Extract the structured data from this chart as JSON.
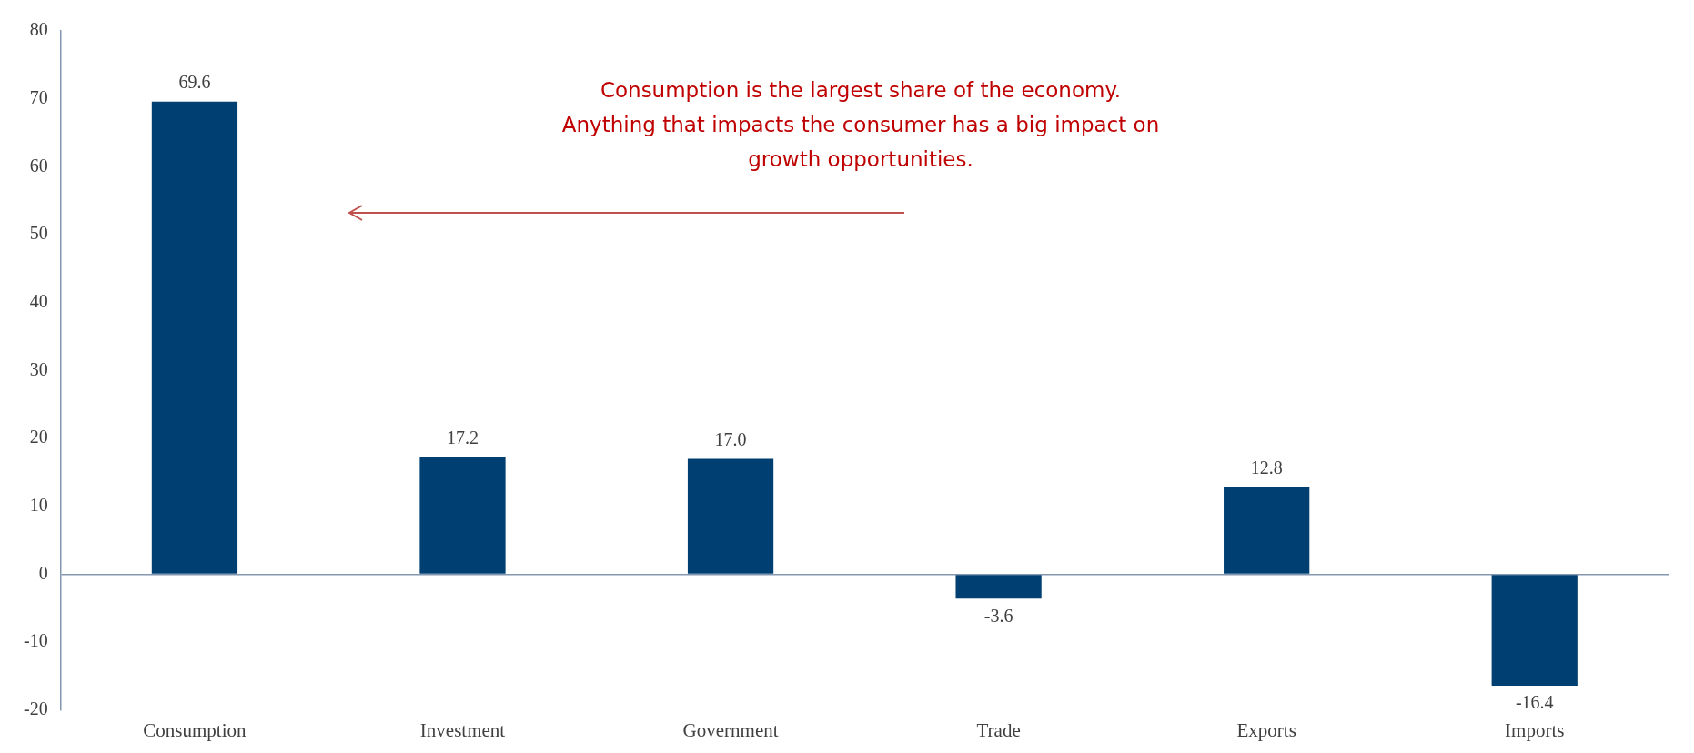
{
  "chart_data": {
    "type": "bar",
    "categories": [
      "Consumption",
      "Investment",
      "Government",
      "Trade",
      "Exports",
      "Imports"
    ],
    "values": [
      69.6,
      17.2,
      17.0,
      -3.6,
      12.8,
      -16.4
    ],
    "color": "#003f72",
    "value_labels": [
      "69.6",
      "17.2",
      "17.0",
      "-3.6",
      "12.8",
      "-16.4"
    ],
    "ref_lines": [
      {
        "axis": "y",
        "value": 0,
        "color": "#8497b0"
      }
    ],
    "ylim": [
      -20,
      80
    ],
    "yticks": [
      -20,
      -10,
      0,
      10,
      20,
      30,
      40,
      50,
      60,
      70,
      80
    ],
    "annotations": [
      "Consumption is the largest share of the economy.\nAnything that impacts the consumer has a big impact on\ngrowth opportunities."
    ],
    "legend": false
  }
}
